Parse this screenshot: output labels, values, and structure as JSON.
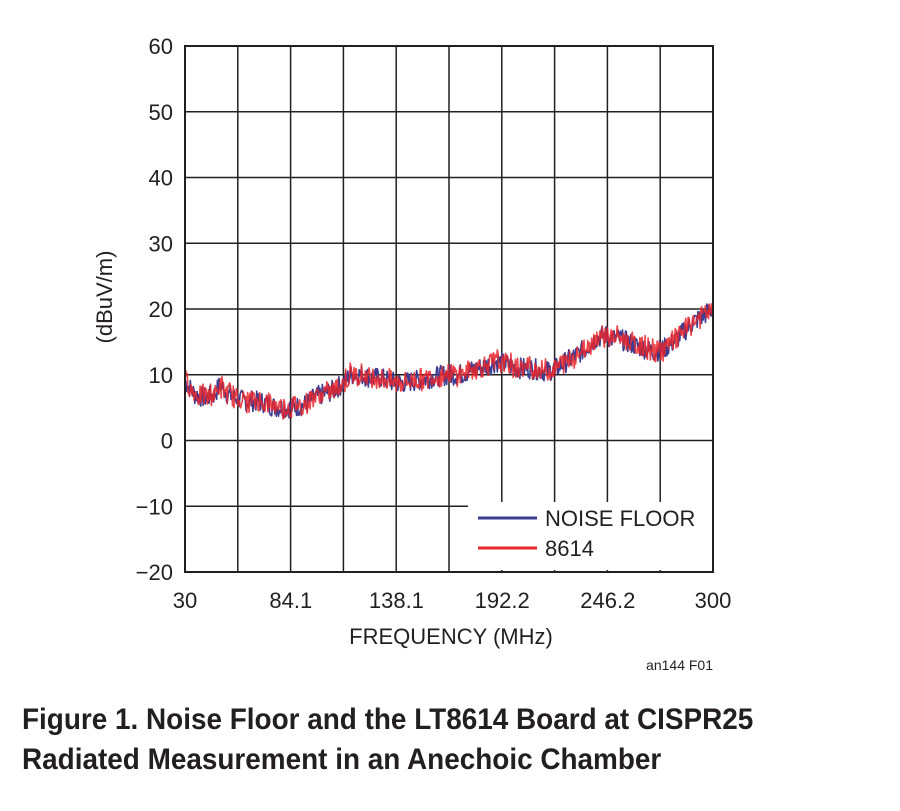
{
  "chart_data": {
    "type": "line",
    "title": "",
    "xlabel": "FREQUENCY (MHz)",
    "ylabel": "(dBuV/m)",
    "xlim": [
      30,
      300
    ],
    "ylim": [
      -20,
      60
    ],
    "x_ticks": [
      30,
      84.1,
      138.1,
      192.2,
      246.2,
      300
    ],
    "x_tick_labels": [
      "30",
      "84.1",
      "138.1",
      "192.2",
      "246.2",
      "300"
    ],
    "y_ticks": [
      -20,
      -10,
      0,
      10,
      20,
      30,
      40,
      50,
      60
    ],
    "y_tick_labels": [
      "−20",
      "−10",
      "0",
      "10",
      "20",
      "30",
      "40",
      "50",
      "60"
    ],
    "grid": true,
    "legend_position": "bottom-right",
    "series": [
      {
        "name": "NOISE FLOOR",
        "color": "#3a3d91",
        "x": [
          30,
          35,
          40,
          45,
          48,
          52,
          56,
          60,
          65,
          70,
          75,
          80,
          84,
          88,
          92,
          96,
          100,
          105,
          110,
          115,
          120,
          125,
          130,
          135,
          138,
          142,
          146,
          150,
          155,
          160,
          165,
          170,
          175,
          180,
          185,
          190,
          195,
          200,
          205,
          210,
          215,
          220,
          225,
          230,
          235,
          240,
          245,
          248,
          252,
          256,
          260,
          265,
          270,
          275,
          280,
          285,
          290,
          295,
          300
        ],
        "y": [
          9,
          7,
          6.5,
          7,
          8.5,
          7,
          6.5,
          6,
          6,
          5.8,
          5.2,
          5,
          5,
          5.2,
          5.5,
          6.5,
          7,
          7.5,
          8.5,
          10,
          10,
          9.5,
          9.5,
          9,
          8.8,
          8.8,
          9,
          9.2,
          9.5,
          9.8,
          10,
          10,
          10.5,
          11,
          11.5,
          12,
          11.5,
          11,
          11,
          10.8,
          10.5,
          11,
          12,
          13,
          14,
          15.5,
          16,
          15.5,
          15.5,
          15,
          14.5,
          14,
          13.5,
          14,
          15,
          16.5,
          18,
          19,
          20
        ]
      },
      {
        "name": "8614",
        "color": "#e8262b",
        "x": [
          30,
          35,
          40,
          45,
          48,
          52,
          56,
          60,
          65,
          70,
          75,
          80,
          84,
          88,
          92,
          96,
          100,
          105,
          110,
          115,
          120,
          125,
          130,
          135,
          138,
          142,
          146,
          150,
          155,
          160,
          165,
          170,
          175,
          180,
          185,
          190,
          195,
          200,
          205,
          210,
          215,
          220,
          225,
          230,
          235,
          240,
          245,
          248,
          252,
          256,
          260,
          265,
          270,
          275,
          280,
          285,
          290,
          295,
          300
        ],
        "y": [
          9.2,
          7.2,
          6.6,
          7.1,
          8.3,
          7.2,
          6.6,
          6.1,
          6.1,
          5.9,
          5.3,
          5.1,
          5.1,
          5.3,
          5.6,
          6.6,
          7.1,
          7.6,
          8.6,
          10.1,
          10.1,
          9.6,
          9.6,
          9.1,
          8.9,
          8.9,
          9.1,
          9.3,
          9.6,
          9.9,
          10.1,
          10.1,
          10.6,
          11.1,
          11.6,
          12.1,
          11.6,
          11.1,
          11.1,
          10.9,
          10.6,
          11.1,
          12.1,
          13.1,
          14.1,
          15.6,
          16.1,
          15.6,
          15.6,
          15.1,
          14.6,
          14.1,
          13.6,
          14.1,
          15.1,
          16.6,
          18.1,
          19.1,
          20.1
        ]
      }
    ],
    "annotations": [
      "an144 F01"
    ]
  },
  "caption": {
    "line1": "Figure 1. Noise Floor and the LT8614 Board at CISPR25",
    "line2": "Radiated Measurement in an Anechoic Chamber"
  }
}
